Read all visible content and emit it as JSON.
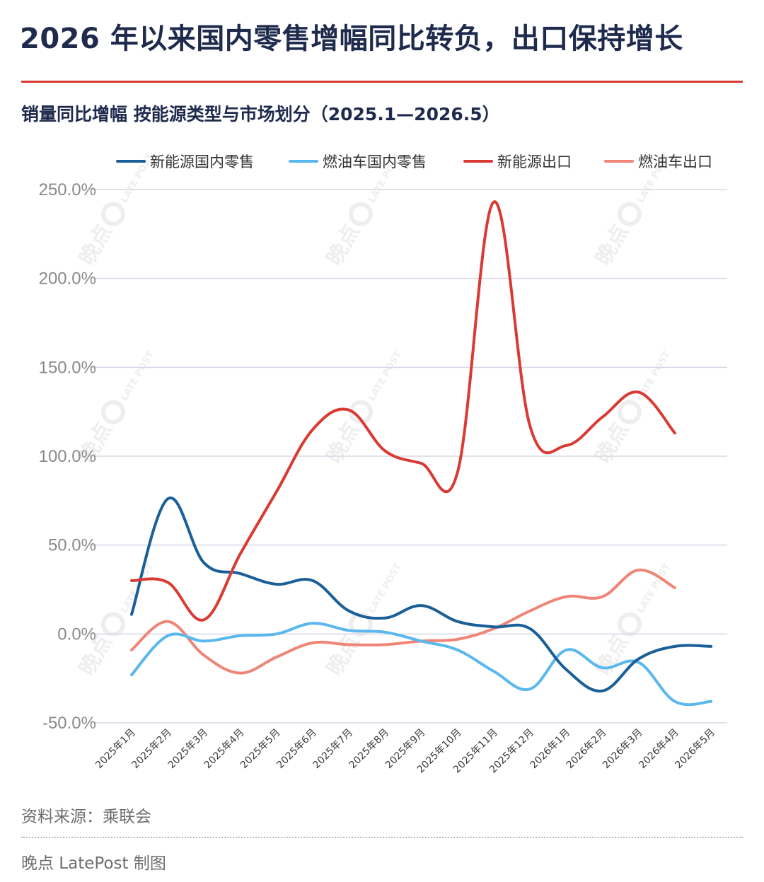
{
  "title": "2026 年以来国内零售增幅同比转负，出口保持增长",
  "subtitle": "销量同比增幅   按能源类型与市场划分（2025.1—2026.5）",
  "source": "资料来源：乘联会",
  "credit": "晚点 LatePost 制图",
  "watermark": {
    "brand": "晚点",
    "logo_text": "LATE POST"
  },
  "colors": {
    "title": "#1f2b4d",
    "accent_rule": "#d93a34",
    "gridline": "#d6d8e6"
  },
  "chart_data": {
    "type": "line",
    "title": "销量同比增幅   按能源类型与市场划分（2025.1—2026.5）",
    "xlabel": "",
    "ylabel": "",
    "categories": [
      "2025年1月",
      "2025年2月",
      "2025年3月",
      "2025年4月",
      "2025年5月",
      "2025年6月",
      "2025年7月",
      "2025年8月",
      "2025年9月",
      "2025年10月",
      "2025年11月",
      "2025年12月",
      "2026年1月",
      "2026年2月",
      "2026年3月",
      "2026年4月",
      "2026年5月"
    ],
    "y_ticks": [
      -50,
      0,
      50,
      100,
      150,
      200,
      250
    ],
    "y_tick_labels": [
      "-50.0%",
      "0.0%",
      "50.0%",
      "100.0%",
      "150.0%",
      "200.0%",
      "250.0%"
    ],
    "ylim": [
      -50,
      250
    ],
    "grid": true,
    "legend_position": "top",
    "series": [
      {
        "name": "新能源国内零售",
        "color": "#1a5f98",
        "values": [
          11,
          76,
          40,
          34,
          28,
          30,
          13,
          9,
          16,
          7,
          4,
          3,
          -20,
          -32,
          -14,
          -7,
          -7
        ]
      },
      {
        "name": "燃油车国内零售",
        "color": "#5ab8ef",
        "values": [
          -23,
          -1,
          -4,
          -1,
          0,
          6,
          2,
          1,
          -4,
          -9,
          -21,
          -31,
          -9,
          -19,
          -16,
          -38,
          -38
        ]
      },
      {
        "name": "新能源出口",
        "color": "#d93a34",
        "values": [
          30,
          29,
          8,
          45,
          80,
          115,
          126,
          103,
          96,
          91,
          243,
          117,
          106,
          122,
          136,
          113,
          null
        ]
      },
      {
        "name": "燃油车出口",
        "color": "#ef8577",
        "values": [
          -9,
          7,
          -12,
          -22,
          -13,
          -5,
          -6,
          -6,
          -4,
          -3,
          3,
          13,
          21,
          21,
          36,
          26,
          null
        ]
      }
    ]
  }
}
